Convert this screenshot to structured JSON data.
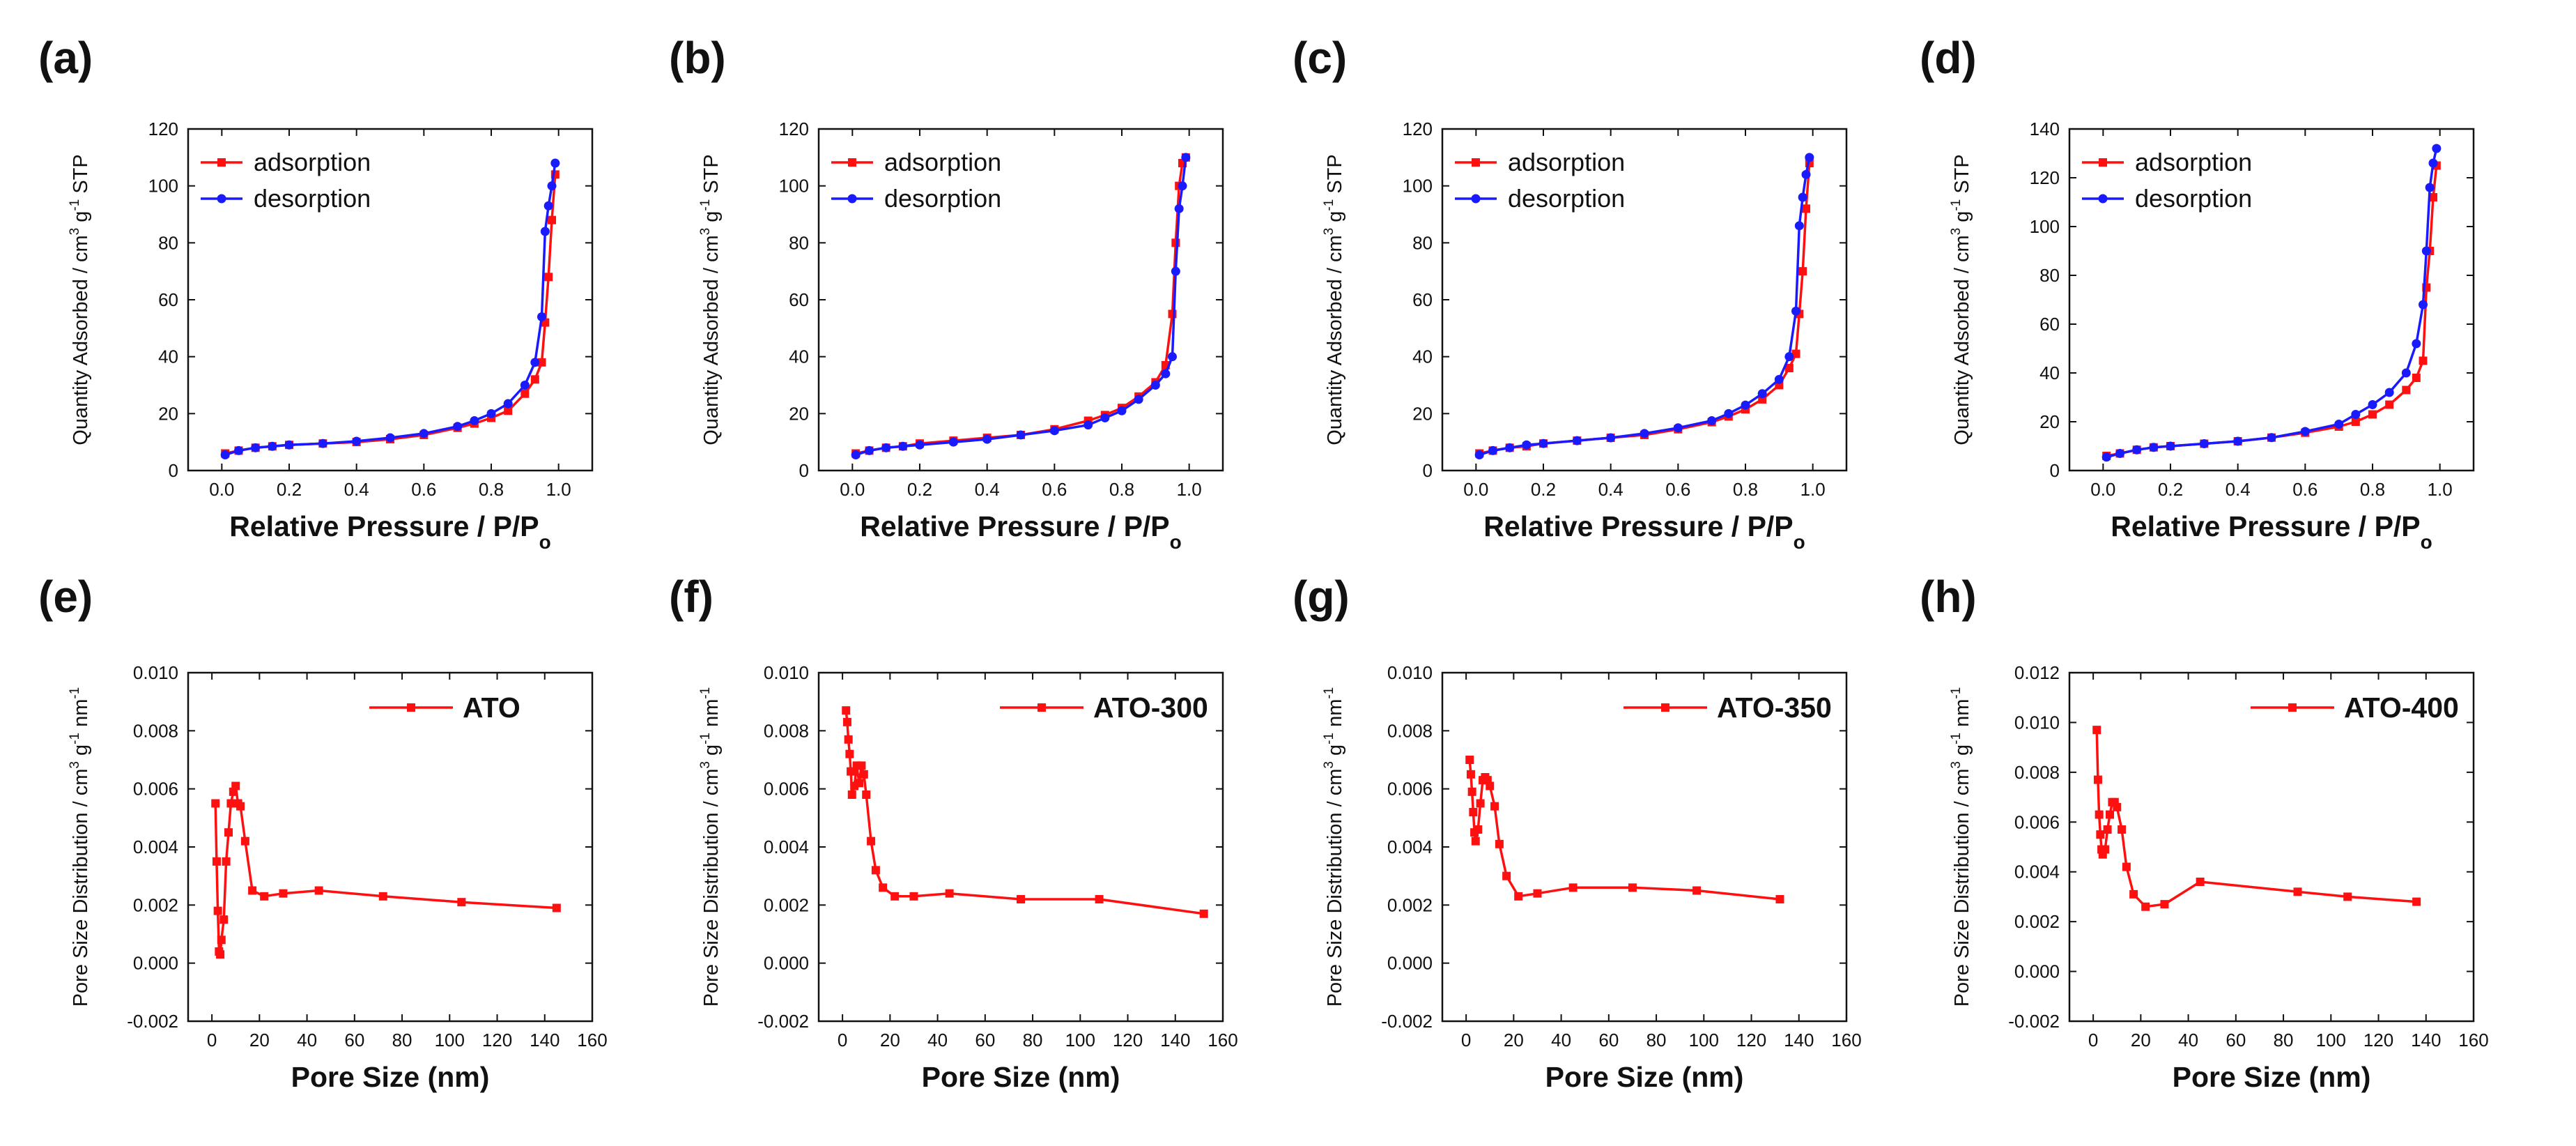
{
  "colors": {
    "adsorption": "#ff1010",
    "desorption": "#1a1aff",
    "psd": "#ff1010",
    "axis": "#111111"
  },
  "chart_data": [
    {
      "tag": "(a)",
      "type": "line",
      "kind": "iso",
      "xlabel_main": "Relative Pressure / P/P",
      "xlabel_sub": "o",
      "ylabel": "Quantity Adsorbed / cm",
      "ylabel_sup": "3",
      "ylabel_mid": " g",
      "ylabel_sup2": "-1",
      "ylabel_end": " STP",
      "xlim": [
        -0.1,
        1.1
      ],
      "ylim": [
        0,
        120
      ],
      "xticks": [
        0.0,
        0.2,
        0.4,
        0.6,
        0.8,
        1.0
      ],
      "xtick_labels": [
        "0.0",
        "0.2",
        "0.4",
        "0.6",
        "0.8",
        "1.0"
      ],
      "yticks": [
        0,
        20,
        40,
        60,
        80,
        100,
        120
      ],
      "ytick_labels": [
        "0",
        "20",
        "40",
        "60",
        "80",
        "100",
        "120"
      ],
      "series": [
        {
          "name": "adsorption",
          "x": [
            0.01,
            0.05,
            0.1,
            0.15,
            0.2,
            0.3,
            0.4,
            0.5,
            0.6,
            0.7,
            0.75,
            0.8,
            0.85,
            0.9,
            0.93,
            0.95,
            0.96,
            0.97,
            0.98,
            0.99
          ],
          "y": [
            6,
            7,
            8,
            8.5,
            9,
            9.5,
            10,
            11,
            12.5,
            15,
            16.5,
            18.5,
            21,
            27,
            32,
            38,
            52,
            68,
            88,
            104
          ]
        },
        {
          "name": "desorption",
          "x": [
            0.99,
            0.98,
            0.97,
            0.96,
            0.95,
            0.93,
            0.9,
            0.85,
            0.8,
            0.75,
            0.7,
            0.6,
            0.5,
            0.4,
            0.3,
            0.2,
            0.15,
            0.1,
            0.05,
            0.01
          ],
          "y": [
            108,
            100,
            93,
            84,
            54,
            38,
            30,
            23.5,
            20,
            17.5,
            15.5,
            13,
            11.5,
            10.3,
            9.5,
            9,
            8.5,
            8,
            7,
            5.5
          ]
        }
      ]
    },
    {
      "tag": "(b)",
      "type": "line",
      "kind": "iso",
      "xlabel_main": "Relative Pressure / P/P",
      "xlabel_sub": "o",
      "ylabel": "Quantity Adsorbed / cm",
      "ylabel_sup": "3",
      "ylabel_mid": " g",
      "ylabel_sup2": "-1",
      "ylabel_end": " STP",
      "xlim": [
        -0.1,
        1.1
      ],
      "ylim": [
        0,
        120
      ],
      "xticks": [
        0.0,
        0.2,
        0.4,
        0.6,
        0.8,
        1.0
      ],
      "xtick_labels": [
        "0.0",
        "0.2",
        "0.4",
        "0.6",
        "0.8",
        "1.0"
      ],
      "yticks": [
        0,
        20,
        40,
        60,
        80,
        100,
        120
      ],
      "ytick_labels": [
        "0",
        "20",
        "40",
        "60",
        "80",
        "100",
        "120"
      ],
      "series": [
        {
          "name": "adsorption",
          "x": [
            0.01,
            0.05,
            0.1,
            0.15,
            0.2,
            0.3,
            0.4,
            0.5,
            0.6,
            0.7,
            0.75,
            0.8,
            0.85,
            0.9,
            0.93,
            0.95,
            0.96,
            0.97,
            0.98,
            0.99
          ],
          "y": [
            6,
            7,
            8,
            8.5,
            9.5,
            10.5,
            11.5,
            12.5,
            14.5,
            17.5,
            19.5,
            22,
            26,
            31,
            37,
            55,
            80,
            100,
            108,
            110
          ]
        },
        {
          "name": "desorption",
          "x": [
            0.99,
            0.98,
            0.97,
            0.96,
            0.95,
            0.93,
            0.9,
            0.85,
            0.8,
            0.75,
            0.7,
            0.6,
            0.5,
            0.4,
            0.3,
            0.2,
            0.15,
            0.1,
            0.05,
            0.01
          ],
          "y": [
            110,
            100,
            92,
            70,
            40,
            34,
            30,
            25,
            21,
            18.5,
            16,
            14,
            12.5,
            11,
            10,
            9,
            8.5,
            8,
            7,
            5.5
          ]
        }
      ]
    },
    {
      "tag": "(c)",
      "type": "line",
      "kind": "iso",
      "xlabel_main": "Relative Pressure / P/P",
      "xlabel_sub": "o",
      "ylabel": "Quantity Adsorbed / cm",
      "ylabel_sup": "3",
      "ylabel_mid": " g",
      "ylabel_sup2": "-1",
      "ylabel_end": " STP",
      "xlim": [
        -0.1,
        1.1
      ],
      "ylim": [
        0,
        120
      ],
      "xticks": [
        0.0,
        0.2,
        0.4,
        0.6,
        0.8,
        1.0
      ],
      "xtick_labels": [
        "0.0",
        "0.2",
        "0.4",
        "0.6",
        "0.8",
        "1.0"
      ],
      "yticks": [
        0,
        20,
        40,
        60,
        80,
        100,
        120
      ],
      "ytick_labels": [
        "0",
        "20",
        "40",
        "60",
        "80",
        "100",
        "120"
      ],
      "series": [
        {
          "name": "adsorption",
          "x": [
            0.01,
            0.05,
            0.1,
            0.15,
            0.2,
            0.3,
            0.4,
            0.5,
            0.6,
            0.7,
            0.75,
            0.8,
            0.85,
            0.9,
            0.93,
            0.95,
            0.96,
            0.97,
            0.98,
            0.99
          ],
          "y": [
            6,
            7,
            8,
            8.5,
            9.5,
            10.5,
            11.5,
            12.5,
            14.5,
            17,
            19,
            21.5,
            25,
            30,
            36,
            41,
            55,
            70,
            92,
            108
          ]
        },
        {
          "name": "desorption",
          "x": [
            0.99,
            0.98,
            0.97,
            0.96,
            0.95,
            0.93,
            0.9,
            0.85,
            0.8,
            0.75,
            0.7,
            0.6,
            0.5,
            0.4,
            0.3,
            0.2,
            0.15,
            0.1,
            0.05,
            0.01
          ],
          "y": [
            110,
            104,
            96,
            86,
            56,
            40,
            32,
            27,
            23,
            20,
            17.5,
            15,
            13,
            11.5,
            10.5,
            9.5,
            9,
            8,
            7,
            5.5
          ]
        }
      ]
    },
    {
      "tag": "(d)",
      "type": "line",
      "kind": "iso",
      "xlabel_main": "Relative Pressure / P/P",
      "xlabel_sub": "o",
      "ylabel": "Quantity Adsorbed / cm",
      "ylabel_sup": "3",
      "ylabel_mid": " g",
      "ylabel_sup2": "-1",
      "ylabel_end": " STP",
      "xlim": [
        -0.1,
        1.1
      ],
      "ylim": [
        0,
        140
      ],
      "xticks": [
        0.0,
        0.2,
        0.4,
        0.6,
        0.8,
        1.0
      ],
      "xtick_labels": [
        "0.0",
        "0.2",
        "0.4",
        "0.6",
        "0.8",
        "1.0"
      ],
      "yticks": [
        0,
        20,
        40,
        60,
        80,
        100,
        120,
        140
      ],
      "ytick_labels": [
        "0",
        "20",
        "40",
        "60",
        "80",
        "100",
        "120",
        "140"
      ],
      "series": [
        {
          "name": "adsorption",
          "x": [
            0.01,
            0.05,
            0.1,
            0.15,
            0.2,
            0.3,
            0.4,
            0.5,
            0.6,
            0.7,
            0.75,
            0.8,
            0.85,
            0.9,
            0.93,
            0.95,
            0.96,
            0.97,
            0.98,
            0.99
          ],
          "y": [
            6,
            7,
            8.5,
            9.5,
            10,
            11,
            12,
            13.5,
            15.5,
            18,
            20,
            23,
            27,
            33,
            38,
            45,
            75,
            90,
            112,
            125
          ]
        },
        {
          "name": "desorption",
          "x": [
            0.99,
            0.98,
            0.97,
            0.96,
            0.95,
            0.93,
            0.9,
            0.85,
            0.8,
            0.75,
            0.7,
            0.6,
            0.5,
            0.4,
            0.3,
            0.2,
            0.15,
            0.1,
            0.05,
            0.01
          ],
          "y": [
            132,
            126,
            116,
            90,
            68,
            52,
            40,
            32,
            27,
            23,
            19,
            16,
            13.5,
            12,
            11,
            10,
            9.5,
            8.5,
            7,
            5.5
          ]
        }
      ]
    },
    {
      "tag": "(e)",
      "type": "line",
      "kind": "psd",
      "xlabel_main": "Pore Size (nm)",
      "ylabel": "Pore Size Distribution / cm",
      "ylabel_sup": "3",
      "ylabel_mid": " g",
      "ylabel_sup2": "-1",
      "ylabel_end": " nm",
      "ylabel_sup3": "-1",
      "xlim": [
        -10,
        160
      ],
      "ylim": [
        -0.002,
        0.01
      ],
      "xticks": [
        0,
        20,
        40,
        60,
        80,
        100,
        120,
        140,
        160
      ],
      "xtick_labels": [
        "0",
        "20",
        "40",
        "60",
        "80",
        "100",
        "120",
        "140",
        "160"
      ],
      "yticks": [
        -0.002,
        0.0,
        0.002,
        0.004,
        0.006,
        0.008,
        0.01
      ],
      "ytick_labels": [
        "-0.002",
        "0.000",
        "0.002",
        "0.004",
        "0.006",
        "0.008",
        "0.010"
      ],
      "series": [
        {
          "name": "ATO",
          "x": [
            1.5,
            2,
            2.5,
            3,
            3.5,
            4,
            5,
            6,
            7,
            8,
            9,
            10,
            11,
            12,
            14,
            17,
            22,
            30,
            45,
            72,
            105,
            145
          ],
          "y": [
            0.0055,
            0.0035,
            0.0018,
            0.0004,
            0.0003,
            0.0008,
            0.0015,
            0.0035,
            0.0045,
            0.0055,
            0.0059,
            0.0061,
            0.0055,
            0.0054,
            0.0042,
            0.0025,
            0.0023,
            0.0024,
            0.0025,
            0.0023,
            0.0021,
            0.0019
          ]
        }
      ]
    },
    {
      "tag": "(f)",
      "type": "line",
      "kind": "psd",
      "xlabel_main": "Pore Size (nm)",
      "ylabel": "Pore Size Distribution / cm",
      "ylabel_sup": "3",
      "ylabel_mid": " g",
      "ylabel_sup2": "-1",
      "ylabel_end": " nm",
      "ylabel_sup3": "-1",
      "xlim": [
        -10,
        160
      ],
      "ylim": [
        -0.002,
        0.01
      ],
      "xticks": [
        0,
        20,
        40,
        60,
        80,
        100,
        120,
        140,
        160
      ],
      "xtick_labels": [
        "0",
        "20",
        "40",
        "60",
        "80",
        "100",
        "120",
        "140",
        "160"
      ],
      "yticks": [
        -0.002,
        0.0,
        0.002,
        0.004,
        0.006,
        0.008,
        0.01
      ],
      "ytick_labels": [
        "-0.002",
        "0.000",
        "0.002",
        "0.004",
        "0.006",
        "0.008",
        "0.010"
      ],
      "series": [
        {
          "name": "ATO-300",
          "x": [
            1.5,
            2,
            2.5,
            3,
            3.5,
            4,
            5,
            6,
            7,
            8,
            9,
            10,
            12,
            14,
            17,
            22,
            30,
            45,
            75,
            108,
            152
          ],
          "y": [
            0.0087,
            0.0083,
            0.0077,
            0.0072,
            0.0066,
            0.0058,
            0.0061,
            0.0068,
            0.0062,
            0.0068,
            0.0065,
            0.0058,
            0.0042,
            0.0032,
            0.0026,
            0.0023,
            0.0023,
            0.0024,
            0.0022,
            0.0022,
            0.0017
          ]
        }
      ]
    },
    {
      "tag": "(g)",
      "type": "line",
      "kind": "psd",
      "xlabel_main": "Pore Size (nm)",
      "ylabel": "Pore Size Distribution / cm",
      "ylabel_sup": "3",
      "ylabel_mid": " g",
      "ylabel_sup2": "-1",
      "ylabel_end": " nm",
      "ylabel_sup3": "-1",
      "xlim": [
        -10,
        160
      ],
      "ylim": [
        -0.002,
        0.01
      ],
      "xticks": [
        0,
        20,
        40,
        60,
        80,
        100,
        120,
        140,
        160
      ],
      "xtick_labels": [
        "0",
        "20",
        "40",
        "60",
        "80",
        "100",
        "120",
        "140",
        "160"
      ],
      "yticks": [
        -0.002,
        0.0,
        0.002,
        0.004,
        0.006,
        0.008,
        0.01
      ],
      "ytick_labels": [
        "-0.002",
        "0.000",
        "0.002",
        "0.004",
        "0.006",
        "0.008",
        "0.010"
      ],
      "series": [
        {
          "name": "ATO-350",
          "x": [
            1.5,
            2,
            2.5,
            3,
            3.5,
            4,
            5,
            6,
            7,
            8,
            9,
            10,
            12,
            14,
            17,
            22,
            30,
            45,
            70,
            97,
            132
          ],
          "y": [
            0.007,
            0.0065,
            0.0059,
            0.0052,
            0.0045,
            0.0042,
            0.0046,
            0.0055,
            0.0063,
            0.0064,
            0.0063,
            0.0061,
            0.0054,
            0.0041,
            0.003,
            0.0023,
            0.0024,
            0.0026,
            0.0026,
            0.0025,
            0.0022
          ]
        }
      ]
    },
    {
      "tag": "(h)",
      "type": "line",
      "kind": "psd",
      "xlabel_main": "Pore Size (nm)",
      "ylabel": "Pore Size Distribution / cm",
      "ylabel_sup": "3",
      "ylabel_mid": " g",
      "ylabel_sup2": "-1",
      "ylabel_end": " nm",
      "ylabel_sup3": "-1",
      "xlim": [
        -10,
        160
      ],
      "ylim": [
        -0.002,
        0.012
      ],
      "xticks": [
        0,
        20,
        40,
        60,
        80,
        100,
        120,
        140,
        160
      ],
      "xtick_labels": [
        "0",
        "20",
        "40",
        "60",
        "80",
        "100",
        "120",
        "140",
        "160"
      ],
      "yticks": [
        -0.002,
        0.0,
        0.002,
        0.004,
        0.006,
        0.008,
        0.01,
        0.012
      ],
      "ytick_labels": [
        "-0.002",
        "0.000",
        "0.002",
        "0.004",
        "0.006",
        "0.008",
        "0.010",
        "0.012"
      ],
      "series": [
        {
          "name": "ATO-400",
          "x": [
            1.5,
            2,
            2.5,
            3,
            3.5,
            4,
            5,
            6,
            7,
            8,
            9,
            10,
            12,
            14,
            17,
            22,
            30,
            45,
            86,
            107,
            136
          ],
          "y": [
            0.0097,
            0.0077,
            0.0063,
            0.0055,
            0.0049,
            0.0047,
            0.0049,
            0.0057,
            0.0063,
            0.0068,
            0.0068,
            0.0066,
            0.0057,
            0.0042,
            0.0031,
            0.0026,
            0.0027,
            0.0036,
            0.0032,
            0.003,
            0.0028
          ]
        }
      ]
    }
  ]
}
